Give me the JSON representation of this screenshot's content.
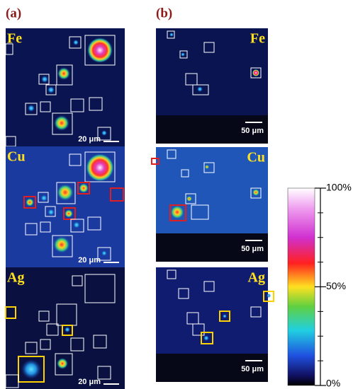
{
  "panels": [
    {
      "label": "(a)",
      "maps": [
        {
          "element": "Fe",
          "scale": "20 μm"
        },
        {
          "element": "Cu",
          "scale": "20 μm"
        },
        {
          "element": "Ag",
          "scale": "20 μm"
        }
      ]
    },
    {
      "label": "(b)",
      "maps": [
        {
          "element": "Fe",
          "scale": "50 μm"
        },
        {
          "element": "Cu",
          "scale": "50 μm"
        },
        {
          "element": "Ag",
          "scale": "50 μm"
        }
      ]
    }
  ],
  "colorbar": {
    "lim": [
      0,
      100
    ],
    "ticks": [
      {
        "value": 0,
        "label": "0%"
      },
      {
        "value": 50,
        "label": "50%"
      },
      {
        "value": 100,
        "label": "100%"
      }
    ]
  }
}
